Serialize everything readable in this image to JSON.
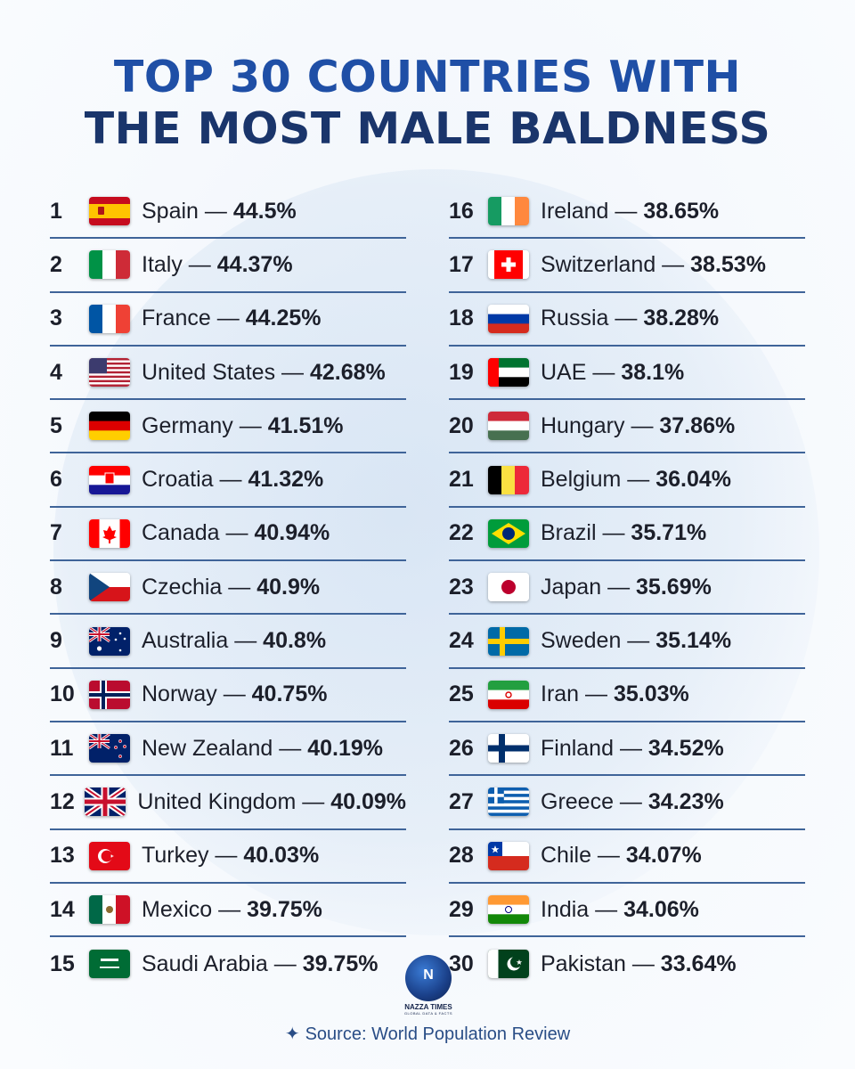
{
  "title": {
    "line1": "TOP 30 COUNTRIES WITH",
    "line2": "THE MOST MALE BALDNESS"
  },
  "left_column": [
    {
      "rank": "1",
      "country": "Spain",
      "value": "44.5%",
      "flag": "spain-flag-icon"
    },
    {
      "rank": "2",
      "country": "Italy",
      "value": "44.37%",
      "flag": "italy-flag-icon"
    },
    {
      "rank": "3",
      "country": "France",
      "value": "44.25%",
      "flag": "france-flag-icon"
    },
    {
      "rank": "4",
      "country": "United States",
      "value": "42.68%",
      "flag": "united-states-flag-icon"
    },
    {
      "rank": "5",
      "country": "Germany",
      "value": "41.51%",
      "flag": "germany-flag-icon"
    },
    {
      "rank": "6",
      "country": "Croatia",
      "value": "41.32%",
      "flag": "croatia-flag-icon"
    },
    {
      "rank": "7",
      "country": "Canada",
      "value": "40.94%",
      "flag": "canada-flag-icon"
    },
    {
      "rank": "8",
      "country": "Czechia",
      "value": "40.9%",
      "flag": "czechia-flag-icon"
    },
    {
      "rank": "9",
      "country": "Australia",
      "value": "40.8%",
      "flag": "australia-flag-icon"
    },
    {
      "rank": "10",
      "country": "Norway",
      "value": "40.75%",
      "flag": "norway-flag-icon"
    },
    {
      "rank": "11",
      "country": "New Zealand",
      "value": "40.19%",
      "flag": "new-zealand-flag-icon"
    },
    {
      "rank": "12",
      "country": "United Kingdom",
      "value": "40.09%",
      "flag": "united-kingdom-flag-icon"
    },
    {
      "rank": "13",
      "country": "Turkey",
      "value": "40.03%",
      "flag": "turkey-flag-icon"
    },
    {
      "rank": "14",
      "country": "Mexico",
      "value": "39.75%",
      "flag": "mexico-flag-icon"
    },
    {
      "rank": "15",
      "country": "Saudi Arabia",
      "value": "39.75%",
      "flag": "saudi-arabia-flag-icon"
    }
  ],
  "right_column": [
    {
      "rank": "16",
      "country": "Ireland",
      "value": "38.65%",
      "flag": "ireland-flag-icon"
    },
    {
      "rank": "17",
      "country": "Switzerland",
      "value": "38.53%",
      "flag": "switzerland-flag-icon"
    },
    {
      "rank": "18",
      "country": "Russia",
      "value": "38.28%",
      "flag": "russia-flag-icon"
    },
    {
      "rank": "19",
      "country": "UAE",
      "value": "38.1%",
      "flag": "uae-flag-icon"
    },
    {
      "rank": "20",
      "country": "Hungary",
      "value": "37.86%",
      "flag": "hungary-flag-icon"
    },
    {
      "rank": "21",
      "country": "Belgium",
      "value": "36.04%",
      "flag": "belgium-flag-icon"
    },
    {
      "rank": "22",
      "country": "Brazil",
      "value": "35.71%",
      "flag": "brazil-flag-icon"
    },
    {
      "rank": "23",
      "country": "Japan",
      "value": "35.69%",
      "flag": "japan-flag-icon"
    },
    {
      "rank": "24",
      "country": "Sweden",
      "value": "35.14%",
      "flag": "sweden-flag-icon"
    },
    {
      "rank": "25",
      "country": "Iran",
      "value": "35.03%",
      "flag": "iran-flag-icon"
    },
    {
      "rank": "26",
      "country": "Finland",
      "value": "34.52%",
      "flag": "finland-flag-icon"
    },
    {
      "rank": "27",
      "country": "Greece",
      "value": "34.23%",
      "flag": "greece-flag-icon"
    },
    {
      "rank": "28",
      "country": "Chile",
      "value": "34.07%",
      "flag": "chile-flag-icon"
    },
    {
      "rank": "29",
      "country": "India",
      "value": "34.06%",
      "flag": "india-flag-icon"
    },
    {
      "rank": "30",
      "country": "Pakistan",
      "value": "33.64%",
      "flag": "pakistan-flag-icon"
    }
  ],
  "separator": " — ",
  "logo": {
    "name": "NAZZA TIMES",
    "tagline": "GLOBAL DATA & FACTS",
    "icon": "globe-logo-icon"
  },
  "source": {
    "icon": "sparkle-icon",
    "text": "Source: World Population Review"
  },
  "colors": {
    "title_line1": "#1f4fa6",
    "title_line2": "#1a356b",
    "divider": "#3f6499",
    "source_text": "#294d86"
  }
}
